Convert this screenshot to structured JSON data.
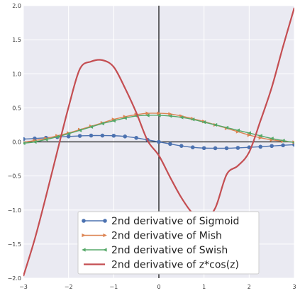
{
  "chart_data": {
    "type": "line",
    "title": "",
    "xlabel": "",
    "ylabel": "",
    "xlim": [
      -3,
      3
    ],
    "ylim": [
      -2,
      2
    ],
    "x_ticks": [
      -3,
      -2,
      -1,
      0,
      1,
      2,
      3
    ],
    "y_ticks": [
      -2.0,
      -1.5,
      -1.0,
      -0.5,
      0.0,
      0.5,
      1.0,
      1.5,
      2.0
    ],
    "x_tick_labels": [
      "−3",
      "−2",
      "−1",
      "0",
      "1",
      "2",
      "3"
    ],
    "y_tick_labels": [
      "−2.0",
      "−1.5",
      "−1.0",
      "−0.5",
      "0.0",
      "0.5",
      "1.0",
      "1.5",
      "2.0"
    ],
    "grid": true,
    "background": "#eaeaf2",
    "legend_placement": "bottom-center",
    "series": [
      {
        "name": "2nd derivative of Sigmoid",
        "color": "#4c72b0",
        "marker": "circle",
        "x": [
          -3.0,
          -2.75,
          -2.5,
          -2.25,
          -2.0,
          -1.75,
          -1.5,
          -1.25,
          -1.0,
          -0.75,
          -0.5,
          -0.25,
          0.0,
          0.25,
          0.5,
          0.75,
          1.0,
          1.25,
          1.5,
          1.75,
          2.0,
          2.25,
          2.5,
          2.75,
          3.0
        ],
        "values": [
          0.041,
          0.05,
          0.06,
          0.071,
          0.08,
          0.088,
          0.093,
          0.093,
          0.091,
          0.08,
          0.059,
          0.03,
          0.0,
          -0.03,
          -0.059,
          -0.08,
          -0.091,
          -0.093,
          -0.093,
          -0.088,
          -0.08,
          -0.071,
          -0.06,
          -0.05,
          -0.041
        ]
      },
      {
        "name": "2nd derivative of Mish",
        "color": "#dd8452",
        "marker": "triangle-right",
        "x": [
          -3.0,
          -2.75,
          -2.5,
          -2.25,
          -2.0,
          -1.75,
          -1.5,
          -1.25,
          -1.0,
          -0.75,
          -0.5,
          -0.25,
          0.0,
          0.25,
          0.5,
          0.75,
          1.0,
          1.25,
          1.5,
          1.75,
          2.0,
          2.25,
          2.5,
          2.75,
          3.0
        ],
        "values": [
          -0.005,
          0.02,
          0.05,
          0.09,
          0.13,
          0.18,
          0.23,
          0.28,
          0.33,
          0.37,
          0.4,
          0.42,
          0.42,
          0.41,
          0.38,
          0.34,
          0.3,
          0.25,
          0.2,
          0.15,
          0.1,
          0.06,
          0.03,
          0.01,
          -0.005
        ]
      },
      {
        "name": "2nd derivative of Swish",
        "color": "#55a868",
        "marker": "triangle-left",
        "x": [
          -3.0,
          -2.75,
          -2.5,
          -2.25,
          -2.0,
          -1.75,
          -1.5,
          -1.25,
          -1.0,
          -0.75,
          -0.5,
          -0.25,
          0.0,
          0.25,
          0.5,
          0.75,
          1.0,
          1.25,
          1.5,
          1.75,
          2.0,
          2.25,
          2.5,
          2.75,
          3.0
        ],
        "values": [
          -0.02,
          0.0,
          0.035,
          0.075,
          0.12,
          0.17,
          0.22,
          0.27,
          0.31,
          0.35,
          0.38,
          0.39,
          0.39,
          0.38,
          0.36,
          0.33,
          0.29,
          0.25,
          0.21,
          0.17,
          0.13,
          0.09,
          0.05,
          0.02,
          -0.01
        ]
      },
      {
        "name": "2nd derivative of z*cos(z)",
        "color": "#c44e52",
        "marker": "none",
        "x": [
          -3.0,
          -2.75,
          -2.5,
          -2.25,
          -2.0,
          -1.75,
          -1.5,
          -1.25,
          -1.0,
          -0.75,
          -0.5,
          -0.25,
          0.0,
          0.25,
          0.5,
          0.75,
          1.0,
          1.25,
          1.5,
          1.75,
          2.0,
          2.25,
          2.5,
          2.75,
          3.0
        ],
        "values": [
          -1.97,
          -1.43,
          -0.8,
          -0.14,
          0.51,
          1.07,
          1.18,
          1.2,
          1.1,
          0.79,
          0.43,
          0.02,
          -0.2,
          -0.52,
          -0.82,
          -1.05,
          -1.14,
          -0.97,
          -0.48,
          -0.35,
          -0.15,
          0.31,
          0.8,
          1.4,
          1.97
        ]
      }
    ]
  }
}
